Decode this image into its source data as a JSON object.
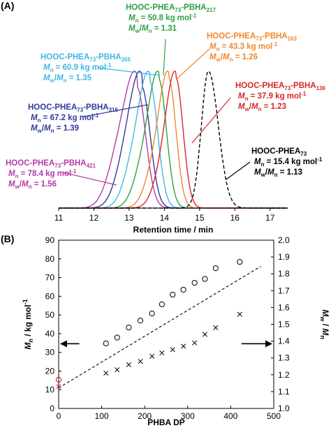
{
  "panels": {
    "a_label": "(A)",
    "b_label": "(B)"
  },
  "chart_data": [
    {
      "type": "line",
      "panel": "(A)",
      "xlabel": "Retention time / min",
      "xlim": [
        11,
        17.5
      ],
      "xticks": [
        "11",
        "12",
        "13",
        "14",
        "15",
        "16",
        "17"
      ],
      "ylabel": "",
      "y_axis_shown": false,
      "grid": false,
      "series": [
        {
          "name": "HOOC-PHEA73-PBHA421",
          "label_main": "HOOC-PHEA",
          "label_sub1": "73",
          "label_mid": "-PBHA",
          "label_sub2": "421",
          "mn_label": "Mn = 78.4 kg mol-1",
          "mn_value": "78.4",
          "pdi_label": "Mw/Mn = 1.56",
          "pdi_value": "1.56",
          "color": "#b23aa8",
          "dash": "",
          "peak": 13.22,
          "left_sigma": 0.3,
          "right_sigma": 0.25,
          "shoulder": 0.45,
          "shoulder_pos": 12.72,
          "shoulder_sigma": 0.32
        },
        {
          "name": "HOOC-PHEA73-PBHA316",
          "label_main": "HOOC-PHEA",
          "label_sub1": "73",
          "label_mid": "-PBHA",
          "label_sub2": "316",
          "mn_label": "Mn = 67.2 kg mol-1",
          "mn_value": "67.2",
          "pdi_label": "Mw/Mn = 1.39",
          "pdi_value": "1.39",
          "color": "#2f3b9c",
          "dash": "",
          "peak": 13.36,
          "left_sigma": 0.29,
          "right_sigma": 0.24,
          "shoulder": 0.4,
          "shoulder_pos": 12.92,
          "shoulder_sigma": 0.3
        },
        {
          "name": "HOOC-PHEA73-PBHA265",
          "label_main": "HOOC-PHEA",
          "label_sub1": "73",
          "label_mid": "-PBHA",
          "label_sub2": "265",
          "mn_label": "Mn = 60.9 kg mol-1",
          "mn_value": "60.9",
          "pdi_label": "Mw/Mn = 1.35",
          "pdi_value": "1.35",
          "color": "#3fb6e6",
          "dash": "",
          "peak": 13.58,
          "left_sigma": 0.28,
          "right_sigma": 0.23,
          "shoulder": 0.32,
          "shoulder_pos": 13.12,
          "shoulder_sigma": 0.28
        },
        {
          "name": "HOOC-PHEA73-PBHA217",
          "label_main": "HOOC-PHEA",
          "label_sub1": "73",
          "label_mid": "-PBHA",
          "label_sub2": "217",
          "mn_label": "Mn = 50.8 kg mol-1",
          "mn_value": "50.8",
          "pdi_label": "Mw/Mn = 1.31",
          "pdi_value": "1.31",
          "color": "#2ea043",
          "dash": "",
          "peak": 13.84,
          "left_sigma": 0.27,
          "right_sigma": 0.22,
          "shoulder": 0.28,
          "shoulder_pos": 13.38,
          "shoulder_sigma": 0.27
        },
        {
          "name": "HOOC-PHEA73-PBHA163",
          "label_main": "HOOC-PHEA",
          "label_sub1": "73",
          "label_mid": "-PBHA",
          "label_sub2": "163",
          "mn_label": "Mn = 43.3 kg mol-1",
          "mn_value": "43.3",
          "pdi_label": "Mw/Mn = 1.26",
          "pdi_value": "1.26",
          "color": "#f0862e",
          "dash": "",
          "peak": 14.12,
          "left_sigma": 0.26,
          "right_sigma": 0.21,
          "shoulder": 0.24,
          "shoulder_pos": 13.68,
          "shoulder_sigma": 0.26
        },
        {
          "name": "HOOC-PHEA73-PBHA136",
          "label_main": "HOOC-PHEA",
          "label_sub1": "73",
          "label_mid": "-PBHA",
          "label_sub2": "136",
          "mn_label": "Mn = 37.9 kg mol-1",
          "mn_value": "37.9",
          "pdi_label": "Mw/Mn = 1.23",
          "pdi_value": "1.23",
          "color": "#d8262b",
          "dash": "",
          "peak": 14.32,
          "left_sigma": 0.26,
          "right_sigma": 0.21,
          "shoulder": 0.2,
          "shoulder_pos": 13.9,
          "shoulder_sigma": 0.25
        },
        {
          "name": "HOOC-PHEA73",
          "label_main": "HOOC-PHEA",
          "label_sub1": "73",
          "label_mid": "",
          "label_sub2": "",
          "mn_label": "Mn = 15.4 kg mol-1",
          "mn_value": "15.4",
          "pdi_label": "Mw/Mn = 1.13",
          "pdi_value": "1.13",
          "color": "#000000",
          "dash": "5,3",
          "peak": 15.25,
          "left_sigma": 0.2,
          "right_sigma": 0.28,
          "shoulder": 0.0,
          "shoulder_pos": 15.0,
          "shoulder_sigma": 0.2
        }
      ]
    },
    {
      "type": "scatter",
      "panel": "(B)",
      "xlabel": "PHBA DP",
      "xlim": [
        0,
        500
      ],
      "xticks": [
        "0",
        "100",
        "200",
        "300",
        "400",
        "500"
      ],
      "ylabel_left": "Mn / kg mol-1",
      "ylabel_left_main": "M",
      "ylabel_left_sub": "n",
      "ylabel_left_rest": " / kg mol",
      "ylabel_left_sup": "-1",
      "ylim_left": [
        0,
        90
      ],
      "yticks_left": [
        "0",
        "10",
        "20",
        "30",
        "40",
        "50",
        "60",
        "70",
        "80",
        "90"
      ],
      "ylabel_right": "Mw / Mn",
      "ylabel_right_a": "M",
      "ylabel_right_a_sub": "w",
      "ylabel_right_mid": " / ",
      "ylabel_right_b": "M",
      "ylabel_right_b_sub": "n",
      "ylim_right": [
        1.0,
        2.0
      ],
      "yticks_right": [
        "1.0",
        "1.1",
        "1.2",
        "1.3",
        "1.4",
        "1.5",
        "1.6",
        "1.7",
        "1.8",
        "1.9",
        "2.0"
      ],
      "grid": false,
      "series": [
        {
          "name": "Mn",
          "marker": "circle",
          "axis": "left",
          "x": [
            110,
            136,
            163,
            190,
            217,
            240,
            265,
            290,
            316,
            340,
            365,
            421
          ],
          "y": [
            34.8,
            37.9,
            43.3,
            47.0,
            50.8,
            55.7,
            60.9,
            63.5,
            67.2,
            69.3,
            75.0,
            78.4
          ]
        },
        {
          "name": "Mw/Mn",
          "marker": "cross",
          "axis": "right",
          "x": [
            110,
            136,
            163,
            190,
            217,
            240,
            265,
            290,
            316,
            340,
            365,
            421
          ],
          "y": [
            1.21,
            1.23,
            1.26,
            1.28,
            1.31,
            1.33,
            1.35,
            1.37,
            1.39,
            1.44,
            1.48,
            1.56
          ]
        },
        {
          "name": "macroinitiator",
          "marker": "circle-cross",
          "color": "#d8262b",
          "axis": "left",
          "x": [
            0
          ],
          "y": [
            15.4
          ],
          "y_right": [
            1.13
          ]
        }
      ],
      "trendline": {
        "x": [
          0,
          470
        ],
        "y": [
          11.0,
          76.0
        ],
        "axis": "left",
        "dash": "4,3"
      },
      "arrows": [
        {
          "direction": "left",
          "target_axis": "left",
          "x_from": 48,
          "x_to": 0,
          "y": 34.6
        },
        {
          "direction": "right",
          "target_axis": "right",
          "x_from": 425,
          "x_to": 500,
          "y": 34.6
        }
      ]
    }
  ]
}
